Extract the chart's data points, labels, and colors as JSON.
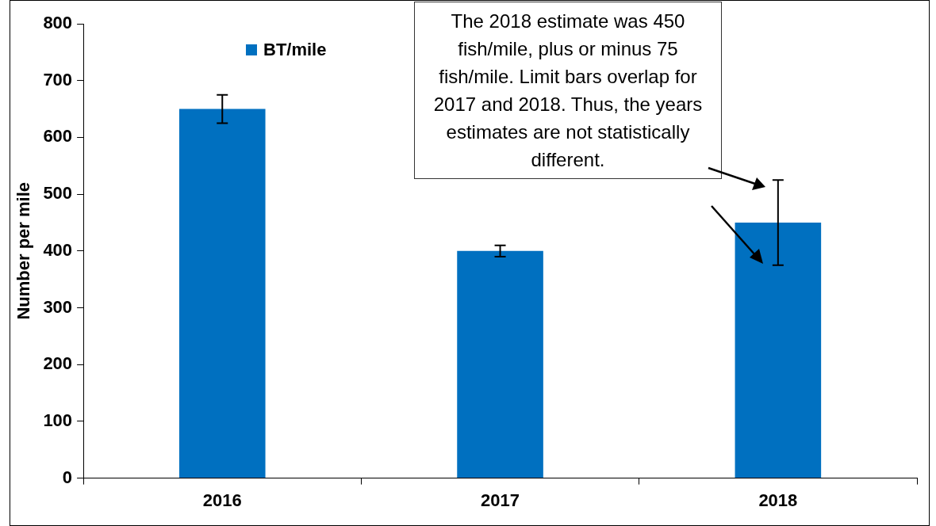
{
  "chart_data": {
    "type": "bar",
    "ylabel": "Number per mile",
    "categories": [
      "2016",
      "2017",
      "2018"
    ],
    "series": [
      {
        "name": "BT/mile",
        "color": "#0070c0",
        "values": [
          650,
          400,
          450
        ],
        "errors": [
          25,
          10,
          75
        ]
      }
    ],
    "ylim": [
      0,
      800
    ],
    "yticks": [
      0,
      100,
      200,
      300,
      400,
      500,
      600,
      700,
      800
    ],
    "grid": false,
    "legend": "top left",
    "annotations": [
      "The 2018 estimate was 450 fish/mile, plus or minus 75 fish/mile. Limit bars overlap for 2017 and 2018.  Thus, the years estimates are not statistically different."
    ]
  }
}
